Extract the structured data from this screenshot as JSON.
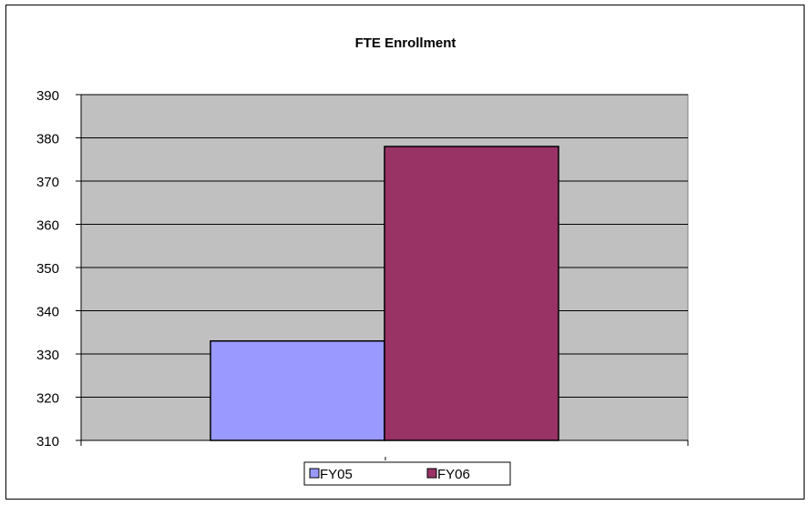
{
  "chart_data": {
    "type": "bar",
    "title": "FTE Enrollment",
    "xlabel": "",
    "ylabel": "",
    "categories": [
      ""
    ],
    "series": [
      {
        "name": "FY05",
        "values": [
          333
        ],
        "color": "#9999FF"
      },
      {
        "name": "FY06",
        "values": [
          378
        ],
        "color": "#993366"
      }
    ],
    "ylim": [
      310,
      390
    ],
    "yticks": [
      310,
      320,
      330,
      340,
      350,
      360,
      370,
      380,
      390
    ],
    "grid": true,
    "plot_background": "#C0C0C0",
    "legend_position": "bottom"
  }
}
